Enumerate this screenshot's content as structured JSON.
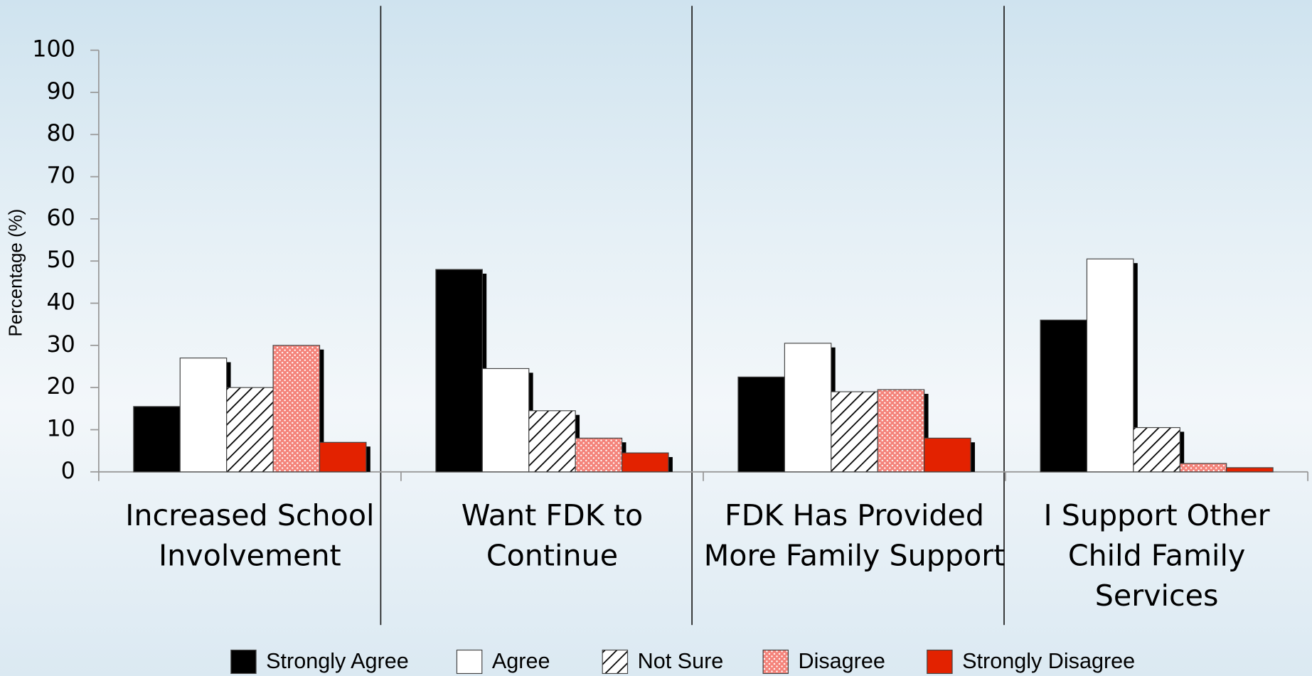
{
  "chart_data": {
    "type": "bar",
    "y_label": "Percentage (%)",
    "categories": [
      "Increased School Involvement",
      "Want FDK to Continue",
      "FDK Has Provided More Family Support",
      "I Support Other Child Family Services"
    ],
    "series": [
      {
        "name": "Strongly Agree",
        "color": "#000000",
        "pattern": "solid",
        "values": [
          15.5,
          48,
          22.5,
          36
        ]
      },
      {
        "name": "Agree",
        "color": "#ffffff",
        "pattern": "solid",
        "values": [
          27,
          24.5,
          30.5,
          50.5
        ]
      },
      {
        "name": "Not Sure",
        "color": "#ffffff",
        "pattern": "hatch",
        "values": [
          20,
          14.5,
          19,
          10.5
        ]
      },
      {
        "name": "Disagree",
        "color": "#f4837a",
        "pattern": "dots",
        "values": [
          30,
          8,
          19.5,
          2
        ]
      },
      {
        "name": "Strongly Disagree",
        "color": "#e32200",
        "pattern": "solid",
        "values": [
          7,
          4.5,
          8,
          1
        ]
      }
    ],
    "ylim": [
      0,
      100
    ],
    "yticks": [
      0,
      10,
      20,
      30,
      40,
      50,
      60,
      70,
      80,
      90,
      100
    ]
  }
}
